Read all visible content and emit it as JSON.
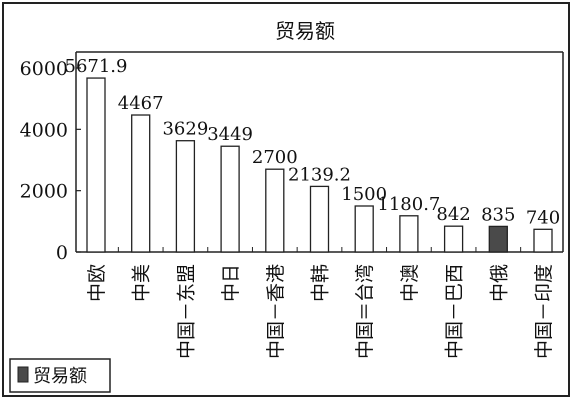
{
  "chart_data": {
    "type": "bar",
    "title": "贸易额",
    "categories": [
      "中欧",
      "中美",
      "中国－东盟",
      "中日",
      "中国－香港",
      "中韩",
      "中国＝台湾",
      "中澳",
      "中国－巴西",
      "中俄",
      "中国－印度"
    ],
    "values": [
      5671.9,
      4467,
      3629,
      3449,
      2700,
      2139.2,
      1500,
      1180.7,
      842,
      835,
      740
    ],
    "value_labels": [
      "5671.9",
      "4467",
      "3629",
      "3449",
      "2700",
      "2139.2",
      "1500",
      "1180.7",
      "842",
      "835",
      "740"
    ],
    "highlight_index": 9,
    "ylim": [
      0,
      6000
    ],
    "yticks": [
      0,
      2000,
      4000,
      6000
    ],
    "xlabel": "",
    "ylabel": "",
    "grid": false,
    "legend": {
      "label": "贸易额",
      "position": "bottom-left"
    },
    "colors": {
      "bar_fill": "#ffffff",
      "highlight_fill": "#4a4a4a",
      "bar_stroke": "#222222",
      "frame": "#222222"
    }
  }
}
